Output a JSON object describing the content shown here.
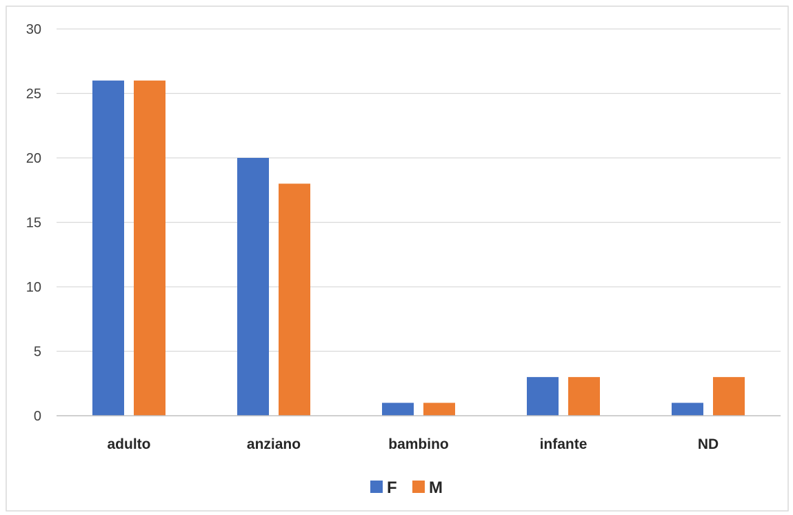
{
  "chart_data": {
    "type": "bar",
    "categories": [
      "adulto",
      "anziano",
      "bambino",
      "infante",
      "ND"
    ],
    "series": [
      {
        "name": "F",
        "values": [
          26,
          20,
          1,
          3,
          1
        ],
        "color": "#4472c4"
      },
      {
        "name": "M",
        "values": [
          26,
          18,
          1,
          3,
          3
        ],
        "color": "#ed7d31"
      }
    ],
    "yticks": [
      "0",
      "5",
      "10",
      "15",
      "20",
      "25",
      "30"
    ],
    "ylim": [
      0,
      30
    ],
    "grid": true,
    "legend_position": "bottom"
  }
}
